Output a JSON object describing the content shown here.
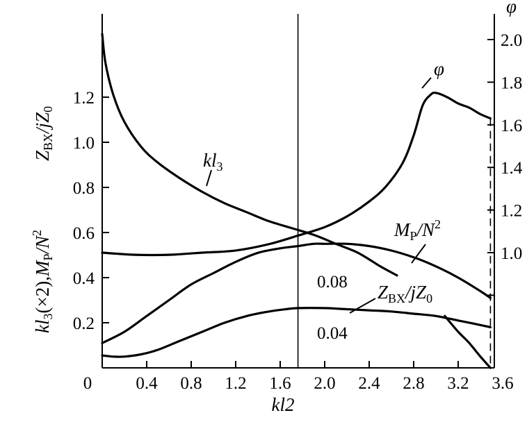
{
  "chart_data": {
    "type": "line",
    "xlabel": "kl2",
    "left_ylabel_parts": [
      "kl",
      "3",
      "(×2),",
      "M",
      "P",
      "/N",
      "2"
    ],
    "left_zlabel_parts": [
      "Z",
      "BX",
      "/jZ",
      "0"
    ],
    "right_ylabel": "φ",
    "xlim": [
      0,
      3.5
    ],
    "ylim_left": [
      0,
      1.5
    ],
    "ylim_right": [
      0.5,
      2.1
    ],
    "x_ticks": [
      "0",
      "0.4",
      "0.8",
      "1.2",
      "1.6",
      "2.0",
      "2.4",
      "2.8",
      "3.2",
      "3.6"
    ],
    "x_tick_values": [
      0,
      0.4,
      0.8,
      1.2,
      1.6,
      2.0,
      2.4,
      2.8,
      3.2,
      3.6
    ],
    "left_y_ticks": [
      "0.2",
      "0.4",
      "0.6",
      "0.8",
      "1.0",
      "1.2"
    ],
    "left_y_tick_values": [
      0.2,
      0.4,
      0.6,
      0.8,
      1.0,
      1.2
    ],
    "right_y_ticks": [
      "1.0",
      "1.2",
      "1.4",
      "1.6",
      "1.8",
      "2.0"
    ],
    "right_y_tick_values": [
      1.0,
      1.2,
      1.4,
      1.6,
      1.8,
      2.0
    ],
    "right_minor_tick_values": [
      0.8
    ],
    "vline_x": 1.76,
    "dashed_vline_x": 3.49,
    "series": [
      {
        "name": "kl3",
        "label_parts": [
          "kl",
          "3"
        ],
        "axis": "left",
        "x": [
          0.0,
          0.03,
          0.1,
          0.2,
          0.35,
          0.5,
          0.7,
          0.9,
          1.1,
          1.3,
          1.5,
          1.7,
          1.9,
          2.1,
          2.3,
          2.5,
          2.65
        ],
        "y": [
          1.48,
          1.35,
          1.21,
          1.09,
          0.98,
          0.91,
          0.84,
          0.78,
          0.73,
          0.69,
          0.65,
          0.62,
          0.59,
          0.55,
          0.51,
          0.45,
          0.41
        ]
      },
      {
        "name": "phi",
        "label": "φ",
        "axis": "right",
        "x": [
          0.0,
          0.3,
          0.6,
          0.9,
          1.2,
          1.5,
          1.76,
          2.0,
          2.2,
          2.4,
          2.55,
          2.7,
          2.8,
          2.88,
          2.95,
          3.0,
          3.1,
          3.2,
          3.3,
          3.4,
          3.49
        ],
        "y": [
          1.0,
          0.99,
          0.99,
          1.0,
          1.01,
          1.04,
          1.08,
          1.12,
          1.17,
          1.24,
          1.31,
          1.42,
          1.55,
          1.69,
          1.74,
          1.75,
          1.73,
          1.7,
          1.68,
          1.65,
          1.63
        ]
      },
      {
        "name": "MP/N2 0.08",
        "label_parts": [
          "M",
          "P",
          "/N",
          "2"
        ],
        "param_label": "0.08",
        "axis": "left",
        "x": [
          0.0,
          0.2,
          0.4,
          0.6,
          0.8,
          1.0,
          1.2,
          1.4,
          1.6,
          1.76,
          1.9,
          2.0,
          2.2,
          2.4,
          2.6,
          2.8,
          3.0,
          3.2,
          3.4,
          3.49
        ],
        "y": [
          0.11,
          0.16,
          0.23,
          0.3,
          0.37,
          0.42,
          0.47,
          0.51,
          0.53,
          0.54,
          0.55,
          0.55,
          0.55,
          0.54,
          0.52,
          0.49,
          0.45,
          0.4,
          0.34,
          0.31
        ]
      },
      {
        "name": "ZBX/jZ0 0.04",
        "label_parts": [
          "Z",
          "BX",
          "/jZ",
          "0"
        ],
        "param_label": "0.04",
        "axis": "left",
        "x": [
          0.0,
          0.1,
          0.2,
          0.35,
          0.5,
          0.7,
          0.9,
          1.1,
          1.3,
          1.5,
          1.65,
          1.76,
          2.0,
          2.2,
          2.4,
          2.6,
          2.8,
          3.0,
          3.2,
          3.4,
          3.49
        ],
        "y": [
          0.055,
          0.05,
          0.05,
          0.06,
          0.08,
          0.12,
          0.16,
          0.2,
          0.23,
          0.25,
          0.26,
          0.265,
          0.265,
          0.26,
          0.255,
          0.25,
          0.24,
          0.23,
          0.21,
          0.19,
          0.18
        ]
      },
      {
        "name": "steep branch",
        "axis": "left",
        "x": [
          3.08,
          3.2,
          3.3,
          3.4,
          3.49
        ],
        "y": [
          0.23,
          0.16,
          0.11,
          0.05,
          0.0
        ]
      }
    ]
  }
}
